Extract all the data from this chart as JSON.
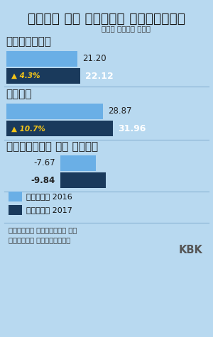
{
  "title": "भारत का विदेश व्यापार",
  "subtitle": "अरब डॉलर में",
  "bg_color": "#b8d9f0",
  "light_blue": "#6aafe6",
  "dark_blue": "#1a3a5c",
  "section1_label": "निर्यात",
  "export_2016": 21.2,
  "export_2017": 22.12,
  "export_pct": "▲ 4.3%",
  "section2_label": "आयात",
  "import_2016": 28.87,
  "import_2017": 31.96,
  "import_pct": "▲ 10.7%",
  "section3_label": "व्यापार का अंतर",
  "deficit_2016": -7.67,
  "deficit_2017": -9.84,
  "legend1": "जनवरी 2016",
  "legend2": "जनवरी 2017",
  "source": "स्रोतः वाणिज्य और\nउद्योग मंत्रालय",
  "credit": "KBK",
  "max_val": 35.0
}
